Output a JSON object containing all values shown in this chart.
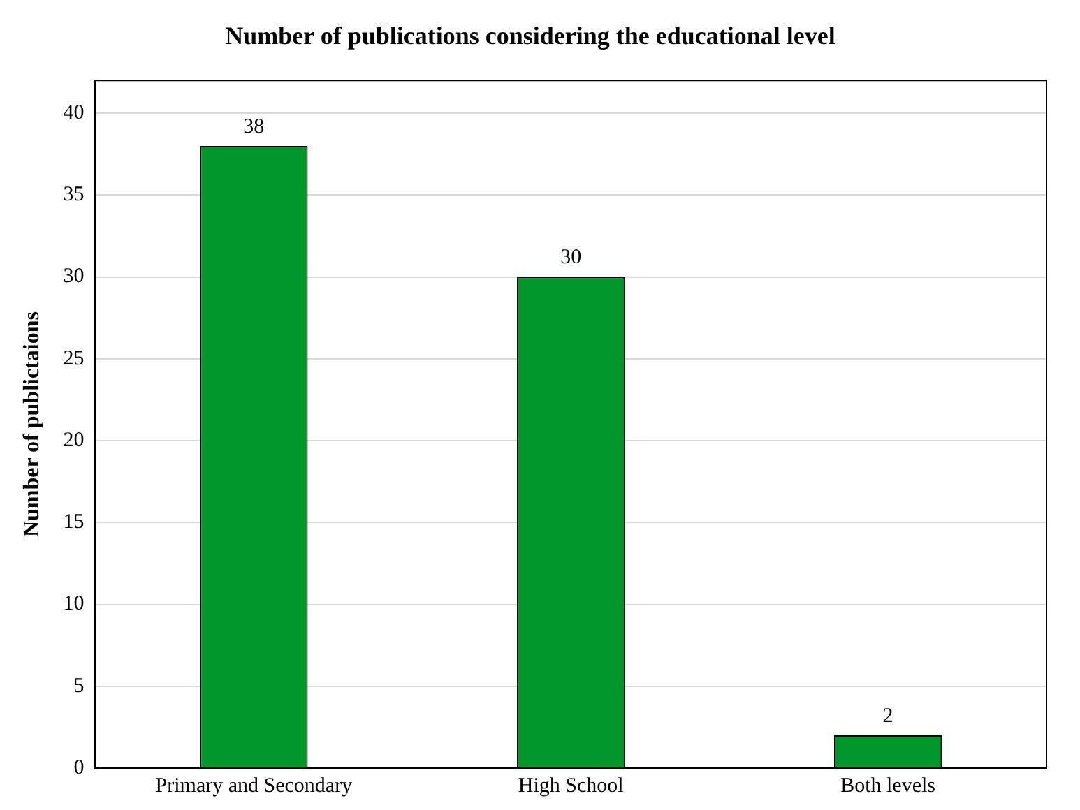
{
  "chart_data": {
    "type": "bar",
    "title": "Number of publications considering the educational level",
    "ylabel": "Number of publictaions",
    "categories": [
      "Primary and Secondary",
      "High School",
      "Both levels"
    ],
    "values": [
      38,
      30,
      2
    ],
    "color": "#009629",
    "ylim": [
      0,
      42
    ],
    "yticks": [
      0,
      5,
      10,
      15,
      20,
      25,
      30,
      35,
      40
    ],
    "grid": "y",
    "legend": false,
    "data_labels": true
  }
}
